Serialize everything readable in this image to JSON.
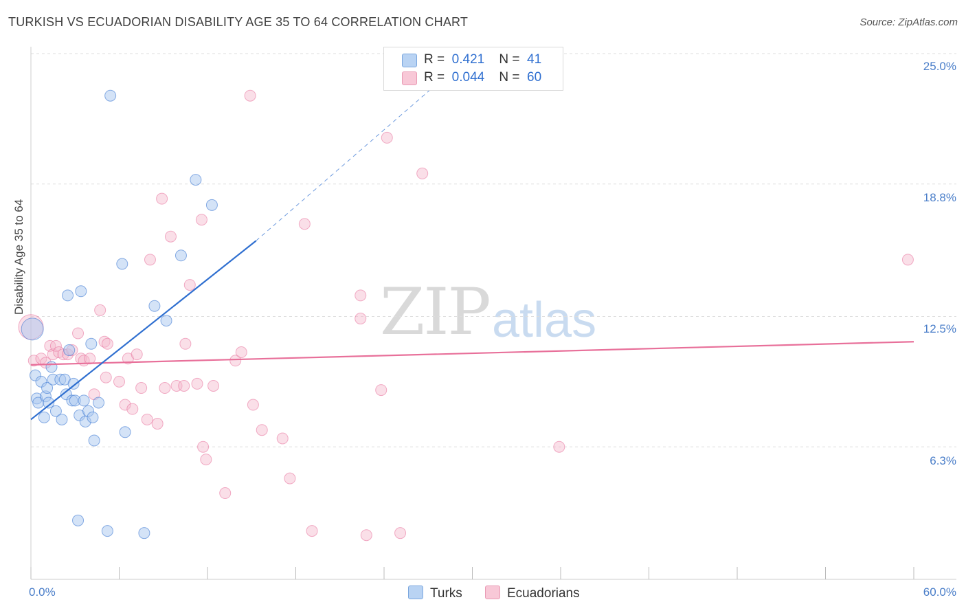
{
  "title": "TURKISH VS ECUADORIAN DISABILITY AGE 35 TO 64 CORRELATION CHART",
  "source": "Source: ZipAtlas.com",
  "watermark_zip": "ZIP",
  "watermark_atlas": "atlas",
  "legend": {
    "r1_label": "R =",
    "r1_value": "0.421",
    "n1_label": "N =",
    "n1_value": "41",
    "r2_label": "R =",
    "r2_value": "0.044",
    "n2_label": "N =",
    "n2_value": "60"
  },
  "bottom_legend": {
    "s1": "Turks",
    "s2": "Ecuadorians"
  },
  "colors": {
    "blue": "#2f6fd0",
    "blue_fill": "#a9c8ef",
    "pink": "#e8709a",
    "pink_fill": "#f5b8cb",
    "grid": "#dddddd"
  },
  "chart_data": {
    "type": "scatter",
    "title": "TURKISH VS ECUADORIAN DISABILITY AGE 35 TO 64 CORRELATION CHART",
    "xlabel": "",
    "ylabel": "Disability Age 35 to 64",
    "xlim": [
      0,
      60
    ],
    "ylim": [
      0,
      25.6
    ],
    "x_tick_labels": [
      "0.0%",
      "60.0%"
    ],
    "y_ticks": [
      6.3,
      12.5,
      18.8,
      25.0
    ],
    "y_tick_labels": [
      "6.3%",
      "12.5%",
      "18.8%",
      "25.0%"
    ],
    "grid": true,
    "legend_position": "top-center",
    "series": [
      {
        "name": "Turks",
        "r": 0.421,
        "n": 41,
        "trend": {
          "x": [
            0,
            15.3
          ],
          "y": [
            7.6,
            16.1
          ],
          "dashed_to": [
            27.5,
            23.5
          ]
        },
        "points": [
          [
            0.1,
            11.9
          ],
          [
            0.3,
            9.7
          ],
          [
            0.4,
            8.6
          ],
          [
            0.5,
            8.4
          ],
          [
            0.7,
            9.4
          ],
          [
            0.9,
            7.7
          ],
          [
            1.0,
            8.7
          ],
          [
            1.1,
            9.1
          ],
          [
            1.2,
            8.4
          ],
          [
            1.4,
            10.1
          ],
          [
            1.5,
            9.5
          ],
          [
            1.7,
            8.0
          ],
          [
            2.0,
            9.5
          ],
          [
            2.1,
            7.6
          ],
          [
            2.3,
            9.5
          ],
          [
            2.4,
            8.8
          ],
          [
            2.5,
            13.5
          ],
          [
            2.6,
            10.9
          ],
          [
            2.8,
            8.5
          ],
          [
            2.9,
            9.3
          ],
          [
            3.0,
            8.5
          ],
          [
            3.3,
            7.8
          ],
          [
            3.4,
            13.7
          ],
          [
            3.6,
            8.5
          ],
          [
            3.7,
            7.5
          ],
          [
            3.9,
            8.0
          ],
          [
            4.1,
            11.2
          ],
          [
            4.2,
            7.7
          ],
          [
            4.3,
            6.6
          ],
          [
            4.6,
            8.4
          ],
          [
            5.4,
            23.0
          ],
          [
            6.2,
            15.0
          ],
          [
            6.4,
            7.0
          ],
          [
            8.4,
            13.0
          ],
          [
            9.2,
            12.3
          ],
          [
            10.2,
            15.4
          ],
          [
            11.2,
            19.0
          ],
          [
            12.3,
            17.8
          ],
          [
            3.2,
            2.8
          ],
          [
            5.2,
            2.3
          ],
          [
            7.7,
            2.2
          ]
        ]
      },
      {
        "name": "Ecuadorians",
        "r": 0.044,
        "n": 60,
        "trend": {
          "x": [
            0,
            60
          ],
          "y": [
            10.2,
            11.3
          ]
        },
        "points": [
          [
            0.2,
            10.4
          ],
          [
            0.7,
            10.5
          ],
          [
            1.0,
            10.3
          ],
          [
            1.3,
            11.1
          ],
          [
            1.5,
            10.7
          ],
          [
            1.7,
            11.1
          ],
          [
            1.9,
            10.8
          ],
          [
            2.2,
            10.7
          ],
          [
            2.5,
            10.7
          ],
          [
            2.8,
            10.9
          ],
          [
            3.2,
            11.7
          ],
          [
            3.4,
            10.5
          ],
          [
            3.6,
            10.4
          ],
          [
            4.0,
            10.5
          ],
          [
            4.3,
            8.8
          ],
          [
            4.7,
            12.8
          ],
          [
            5.0,
            11.3
          ],
          [
            5.1,
            9.6
          ],
          [
            5.2,
            11.2
          ],
          [
            6.0,
            9.4
          ],
          [
            6.4,
            8.3
          ],
          [
            6.6,
            10.5
          ],
          [
            6.9,
            8.1
          ],
          [
            7.2,
            10.7
          ],
          [
            7.5,
            9.1
          ],
          [
            7.9,
            7.6
          ],
          [
            8.1,
            15.2
          ],
          [
            8.6,
            7.4
          ],
          [
            8.9,
            18.1
          ],
          [
            9.1,
            9.1
          ],
          [
            9.5,
            16.3
          ],
          [
            9.9,
            9.2
          ],
          [
            10.4,
            9.2
          ],
          [
            10.5,
            11.2
          ],
          [
            10.8,
            14.0
          ],
          [
            11.3,
            9.3
          ],
          [
            11.6,
            17.1
          ],
          [
            11.7,
            6.3
          ],
          [
            11.9,
            5.7
          ],
          [
            12.4,
            9.2
          ],
          [
            13.2,
            4.1
          ],
          [
            13.9,
            10.4
          ],
          [
            14.3,
            10.8
          ],
          [
            14.9,
            23.0
          ],
          [
            15.1,
            8.3
          ],
          [
            15.7,
            7.1
          ],
          [
            17.1,
            6.7
          ],
          [
            17.6,
            4.8
          ],
          [
            18.6,
            16.9
          ],
          [
            19.1,
            2.3
          ],
          [
            22.4,
            13.5
          ],
          [
            22.4,
            12.4
          ],
          [
            22.8,
            2.1
          ],
          [
            23.8,
            9.0
          ],
          [
            24.2,
            21.0
          ],
          [
            25.1,
            2.2
          ],
          [
            26.6,
            19.3
          ],
          [
            35.9,
            6.3
          ],
          [
            59.6,
            15.2
          ],
          [
            0.0,
            12.0
          ]
        ]
      }
    ]
  }
}
